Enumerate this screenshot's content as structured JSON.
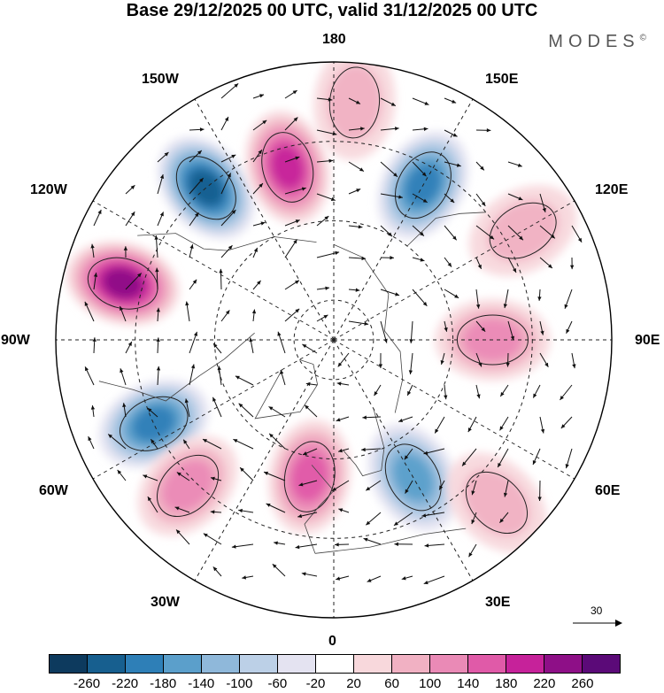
{
  "title": "Base 29/12/2025 00 UTC, valid 31/12/2025 00 UTC",
  "brand": "MODES",
  "brand_mark": "©",
  "longitude_labels": {
    "n180": "180",
    "e150": "150E",
    "e120": "120E",
    "e90": "90E",
    "e60": "60E",
    "e30": "30E",
    "z0": "0",
    "w30": "30W",
    "w60": "60W",
    "w90": "90W",
    "w120": "120W",
    "w150": "150W"
  },
  "reference_vector": {
    "label": "30"
  },
  "colorbar": {
    "colors": [
      "#0d3a5e",
      "#175f8f",
      "#2e7fb7",
      "#5b9fcb",
      "#8fb8da",
      "#bcd0e7",
      "#e4e3f1",
      "#ffffff",
      "#f8d8dc",
      "#f1b1c3",
      "#ea8ab6",
      "#e05aa8",
      "#c6229a",
      "#8e0f87",
      "#5b0a78"
    ],
    "ticks": [
      "-260",
      "-220",
      "-180",
      "-140",
      "-100",
      "-60",
      "-20",
      "20",
      "60",
      "100",
      "140",
      "180",
      "220",
      "260"
    ]
  },
  "anomaly_centers": [
    {
      "lon": -140,
      "lat": 40,
      "value": -240
    },
    {
      "lon": -165,
      "lat": 45,
      "value": 200
    },
    {
      "lon": -105,
      "lat": 35,
      "value": 240
    },
    {
      "lon": -65,
      "lat": 40,
      "value": -200
    },
    {
      "lon": -10,
      "lat": 55,
      "value": 140
    },
    {
      "lon": 30,
      "lat": 50,
      "value": -160
    },
    {
      "lon": 150,
      "lat": 45,
      "value": -200
    },
    {
      "lon": 90,
      "lat": 50,
      "value": 120
    },
    {
      "lon": -45,
      "lat": 38,
      "value": 100
    },
    {
      "lon": 45,
      "lat": 32,
      "value": 80
    },
    {
      "lon": 120,
      "lat": 35,
      "value": 60
    },
    {
      "lon": 175,
      "lat": 30,
      "value": 60
    }
  ]
}
